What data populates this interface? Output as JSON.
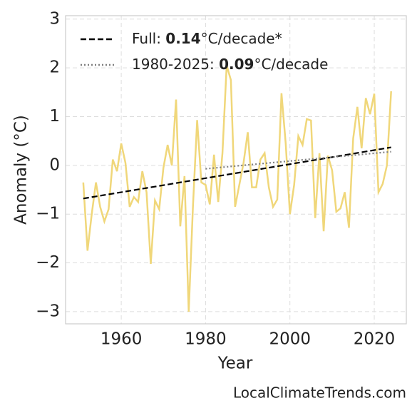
{
  "chart_data": {
    "type": "line",
    "xlabel": "Year",
    "ylabel": "Anomaly (°C)",
    "watermark": "LocalClimateTrends.com",
    "xlim": [
      1946.8,
      2027.6
    ],
    "xticks": [
      1960,
      1980,
      2000,
      2020
    ],
    "ylim": [
      -3.25,
      3.07
    ],
    "yticks": [
      {
        "value": -3,
        "label": "−3"
      },
      {
        "value": -2,
        "label": "−2"
      },
      {
        "value": -1,
        "label": "−1"
      },
      0,
      1,
      2,
      3
    ],
    "grid": true,
    "legend": "upper left",
    "series": [
      {
        "color": "#f0d77a",
        "x": [
          1951,
          1952,
          1953,
          1954,
          1955,
          1956,
          1957,
          1958,
          1959,
          1960,
          1961,
          1962,
          1963,
          1964,
          1965,
          1966,
          1967,
          1968,
          1969,
          1970,
          1971,
          1972,
          1973,
          1974,
          1975,
          1976,
          1977,
          1978,
          1979,
          1980,
          1981,
          1982,
          1983,
          1984,
          1985,
          1986,
          1987,
          1988,
          1989,
          1990,
          1991,
          1992,
          1993,
          1994,
          1995,
          1996,
          1997,
          1998,
          1999,
          2000,
          2001,
          2002,
          2003,
          2004,
          2005,
          2006,
          2007,
          2008,
          2009,
          2010,
          2011,
          2012,
          2013,
          2014,
          2015,
          2016,
          2017,
          2018,
          2019,
          2020,
          2021,
          2022,
          2023,
          2024
        ],
        "values": [
          -0.35,
          -1.75,
          -1.0,
          -0.35,
          -0.85,
          -1.15,
          -0.9,
          0.12,
          -0.12,
          0.45,
          0.05,
          -0.85,
          -0.65,
          -0.75,
          -0.12,
          -0.55,
          -2.02,
          -0.72,
          -0.9,
          -0.05,
          0.42,
          0.0,
          1.35,
          -1.25,
          -0.22,
          -3.0,
          -0.85,
          0.93,
          -0.35,
          -0.4,
          -0.8,
          0.22,
          -0.75,
          0.25,
          2.05,
          1.75,
          -0.85,
          -0.4,
          0.05,
          0.68,
          -0.45,
          -0.45,
          0.12,
          0.25,
          -0.45,
          -0.85,
          -0.7,
          1.48,
          0.45,
          -1.0,
          -0.4,
          0.6,
          0.42,
          0.95,
          0.92,
          -1.08,
          0.25,
          -1.35,
          0.2,
          -0.1,
          -0.95,
          -0.88,
          -0.55,
          -1.28,
          0.55,
          1.2,
          0.35,
          1.38,
          1.05,
          1.47,
          -0.55,
          -0.38,
          0.0,
          1.52
        ]
      },
      {
        "label_parts": [
          "Full: ",
          "0.14",
          "°C/decade*"
        ],
        "color": "#000000",
        "dash": "dashed",
        "x": [
          1951,
          2024
        ],
        "values": [
          -0.68,
          0.37
        ]
      },
      {
        "label_parts": [
          "1980-2025: ",
          "0.09",
          "°C/decade"
        ],
        "color": "#808080",
        "dash": "dotted",
        "x": [
          1980,
          2024
        ],
        "values": [
          -0.07,
          0.28
        ]
      }
    ]
  }
}
